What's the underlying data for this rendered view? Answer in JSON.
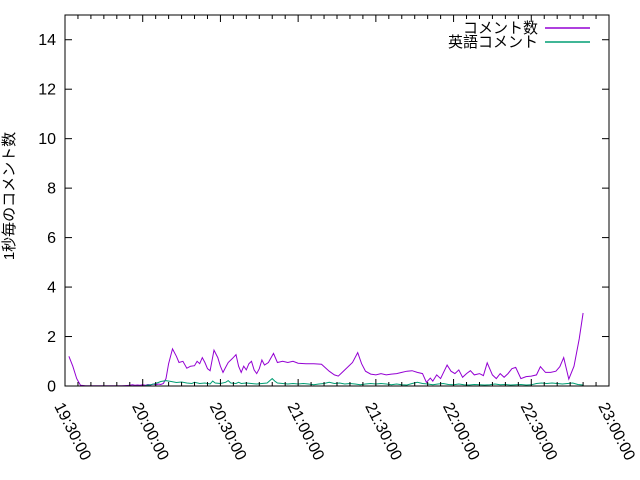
{
  "chart_data": {
    "type": "line",
    "title": "",
    "xlabel": "",
    "ylabel": "1秒毎のコメント数",
    "background": "#ffffff",
    "border_color": "#000000",
    "grid": false,
    "x_axis": {
      "kind": "time",
      "range_minutes": [
        0,
        210
      ],
      "start_label": "19:30:00",
      "end_label": "23:00:00",
      "tick_labels": [
        "19:30:00",
        "20:00:00",
        "20:30:00",
        "21:00:00",
        "21:30:00",
        "22:00:00",
        "22:30:00",
        "23:00:00"
      ],
      "tick_minutes": [
        0,
        30,
        60,
        90,
        120,
        150,
        180,
        210
      ],
      "minor_tick_interval_min": 5,
      "label_rotation_deg": 63
    },
    "y_axis": {
      "range": [
        0,
        15
      ],
      "tick_labels": [
        "0",
        "2",
        "4",
        "6",
        "8",
        "10",
        "12",
        "14"
      ],
      "tick_values": [
        0,
        2,
        4,
        6,
        8,
        10,
        12,
        14
      ]
    },
    "legend": {
      "position": "top-right-inside",
      "entries": [
        {
          "label": "コメント数",
          "color": "#9400d3"
        },
        {
          "label": "英語コメント",
          "color": "#009e73"
        }
      ]
    },
    "series": [
      {
        "name": "コメント数",
        "color": "#9400d3",
        "points": [
          [
            1.5,
            1.2
          ],
          [
            3,
            0.8
          ],
          [
            4.5,
            0.3
          ],
          [
            6,
            0.03
          ],
          [
            8,
            0.01
          ],
          [
            10,
            0.01
          ],
          [
            12,
            0.01
          ],
          [
            14,
            0.01
          ],
          [
            16,
            0.01
          ],
          [
            18,
            0.01
          ],
          [
            20,
            0.01
          ],
          [
            22,
            0.01
          ],
          [
            24,
            0.02
          ],
          [
            25,
            0.03
          ],
          [
            26,
            0.05
          ],
          [
            27,
            0.03
          ],
          [
            28,
            0.04
          ],
          [
            29,
            0.03
          ],
          [
            30,
            0.05
          ],
          [
            31,
            0.03
          ],
          [
            32,
            0.06
          ],
          [
            33,
            0.04
          ],
          [
            34,
            0.08
          ],
          [
            35,
            0.05
          ],
          [
            36,
            0.08
          ],
          [
            37,
            0.06
          ],
          [
            38,
            0.1
          ],
          [
            39,
            0.3
          ],
          [
            40,
            0.9
          ],
          [
            41.5,
            1.5
          ],
          [
            43,
            1.2
          ],
          [
            44,
            0.95
          ],
          [
            45.5,
            1.0
          ],
          [
            47,
            0.72
          ],
          [
            48.5,
            0.8
          ],
          [
            50,
            0.82
          ],
          [
            51,
            1.0
          ],
          [
            52,
            0.9
          ],
          [
            53,
            1.15
          ],
          [
            54,
            0.95
          ],
          [
            55,
            0.7
          ],
          [
            56,
            0.62
          ],
          [
            57.5,
            1.45
          ],
          [
            59,
            1.15
          ],
          [
            60,
            0.8
          ],
          [
            61,
            0.55
          ],
          [
            62,
            0.75
          ],
          [
            63,
            0.95
          ],
          [
            64.5,
            1.1
          ],
          [
            66,
            1.27
          ],
          [
            67,
            0.8
          ],
          [
            68,
            0.55
          ],
          [
            69,
            0.8
          ],
          [
            70,
            0.65
          ],
          [
            71,
            0.9
          ],
          [
            72,
            1.0
          ],
          [
            73,
            0.65
          ],
          [
            74,
            0.5
          ],
          [
            75,
            0.7
          ],
          [
            76,
            1.05
          ],
          [
            77,
            0.85
          ],
          [
            78.5,
            0.95
          ],
          [
            80.5,
            1.32
          ],
          [
            82,
            0.95
          ],
          [
            84,
            1.0
          ],
          [
            86,
            0.95
          ],
          [
            88,
            1.0
          ],
          [
            90,
            0.92
          ],
          [
            93,
            0.9
          ],
          [
            96,
            0.9
          ],
          [
            99,
            0.88
          ],
          [
            102,
            0.6
          ],
          [
            104,
            0.45
          ],
          [
            105.5,
            0.4
          ],
          [
            107,
            0.55
          ],
          [
            109,
            0.75
          ],
          [
            111,
            0.95
          ],
          [
            113,
            1.35
          ],
          [
            114.5,
            0.9
          ],
          [
            116,
            0.6
          ],
          [
            118,
            0.48
          ],
          [
            120,
            0.45
          ],
          [
            122,
            0.5
          ],
          [
            124,
            0.45
          ],
          [
            126,
            0.48
          ],
          [
            128,
            0.5
          ],
          [
            130,
            0.55
          ],
          [
            132,
            0.6
          ],
          [
            134,
            0.62
          ],
          [
            136,
            0.55
          ],
          [
            138,
            0.5
          ],
          [
            139.5,
            0.15
          ],
          [
            141,
            0.32
          ],
          [
            142,
            0.2
          ],
          [
            143.5,
            0.45
          ],
          [
            145,
            0.3
          ],
          [
            147.5,
            0.85
          ],
          [
            149,
            0.6
          ],
          [
            150.5,
            0.5
          ],
          [
            152,
            0.65
          ],
          [
            153.5,
            0.35
          ],
          [
            155,
            0.5
          ],
          [
            156.5,
            0.62
          ],
          [
            158,
            0.45
          ],
          [
            160,
            0.5
          ],
          [
            161.5,
            0.42
          ],
          [
            163,
            0.94
          ],
          [
            165,
            0.45
          ],
          [
            166.5,
            0.3
          ],
          [
            168,
            0.5
          ],
          [
            169.5,
            0.35
          ],
          [
            171,
            0.5
          ],
          [
            172.5,
            0.7
          ],
          [
            174,
            0.75
          ],
          [
            176,
            0.3
          ],
          [
            178,
            0.38
          ],
          [
            180,
            0.4
          ],
          [
            182,
            0.45
          ],
          [
            183.5,
            0.78
          ],
          [
            185.5,
            0.55
          ],
          [
            187.5,
            0.55
          ],
          [
            189.5,
            0.6
          ],
          [
            191,
            0.78
          ],
          [
            192.5,
            1.15
          ],
          [
            194.5,
            0.28
          ],
          [
            196.5,
            0.8
          ],
          [
            198.5,
            1.9
          ],
          [
            200,
            2.95
          ]
        ]
      },
      {
        "name": "英語コメント",
        "color": "#009e73",
        "points": [
          [
            31,
            0.02
          ],
          [
            33,
            0.05
          ],
          [
            35,
            0.1
          ],
          [
            37,
            0.18
          ],
          [
            39,
            0.22
          ],
          [
            41,
            0.18
          ],
          [
            43,
            0.14
          ],
          [
            45,
            0.16
          ],
          [
            47,
            0.12
          ],
          [
            49,
            0.1
          ],
          [
            50,
            0.15
          ],
          [
            52,
            0.1
          ],
          [
            54,
            0.12
          ],
          [
            56,
            0.08
          ],
          [
            57,
            0.2
          ],
          [
            58,
            0.12
          ],
          [
            60,
            0.1
          ],
          [
            62,
            0.15
          ],
          [
            63,
            0.22
          ],
          [
            64,
            0.12
          ],
          [
            66,
            0.1
          ],
          [
            67,
            0.15
          ],
          [
            68,
            0.1
          ],
          [
            70,
            0.12
          ],
          [
            72,
            0.1
          ],
          [
            74,
            0.08
          ],
          [
            76,
            0.1
          ],
          [
            78,
            0.12
          ],
          [
            80,
            0.3
          ],
          [
            81,
            0.2
          ],
          [
            82,
            0.12
          ],
          [
            84,
            0.1
          ],
          [
            86,
            0.08
          ],
          [
            88,
            0.1
          ],
          [
            90,
            0.08
          ],
          [
            92,
            0.1
          ],
          [
            94,
            0.08
          ],
          [
            96,
            0.05
          ],
          [
            98,
            0.08
          ],
          [
            100,
            0.1
          ],
          [
            102,
            0.15
          ],
          [
            104,
            0.1
          ],
          [
            106,
            0.12
          ],
          [
            108,
            0.08
          ],
          [
            110,
            0.1
          ],
          [
            112,
            0.08
          ],
          [
            114,
            0.05
          ],
          [
            116,
            0.08
          ],
          [
            118,
            0.1
          ],
          [
            120,
            0.08
          ],
          [
            122,
            0.1
          ],
          [
            124,
            0.08
          ],
          [
            126,
            0.05
          ],
          [
            128,
            0.08
          ],
          [
            130,
            0.05
          ],
          [
            132,
            0.04
          ],
          [
            134,
            0.1
          ],
          [
            136,
            0.15
          ],
          [
            138,
            0.1
          ],
          [
            140,
            0.08
          ],
          [
            142,
            0.05
          ],
          [
            144,
            0.08
          ],
          [
            146,
            0.1
          ],
          [
            148,
            0.06
          ],
          [
            150,
            0.05
          ],
          [
            152,
            0.08
          ],
          [
            154,
            0.05
          ],
          [
            156,
            0.04
          ],
          [
            158,
            0.06
          ],
          [
            160,
            0.05
          ],
          [
            162,
            0.04
          ],
          [
            164,
            0.05
          ],
          [
            166,
            0.08
          ],
          [
            168,
            0.05
          ],
          [
            170,
            0.06
          ],
          [
            172,
            0.04
          ],
          [
            174,
            0.05
          ],
          [
            176,
            0.06
          ],
          [
            178,
            0.04
          ],
          [
            180,
            0.05
          ],
          [
            182,
            0.1
          ],
          [
            184,
            0.12
          ],
          [
            186,
            0.1
          ],
          [
            188,
            0.12
          ],
          [
            190,
            0.1
          ],
          [
            192,
            0.08
          ],
          [
            194,
            0.1
          ],
          [
            196,
            0.12
          ],
          [
            198,
            0.06
          ],
          [
            200,
            0.04
          ]
        ]
      }
    ]
  }
}
